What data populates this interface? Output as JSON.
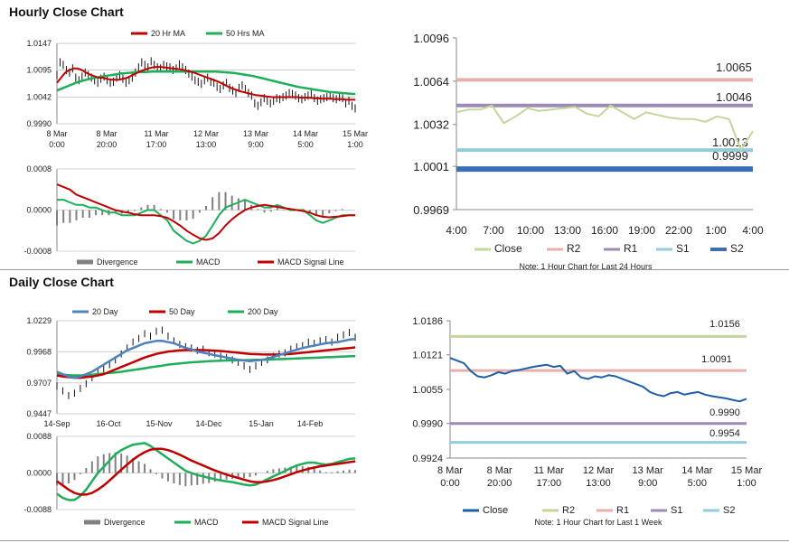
{
  "sections": {
    "hourly_title": "Hourly Close Chart",
    "daily_title": "Daily Close Chart"
  },
  "colors": {
    "ma20": "#c00000",
    "ma50": "#1fae5a",
    "ma200": "#1fae5a",
    "ma20day": "#4f81bd",
    "close_green": "#c3d69b",
    "close_blue": "#1f5fa6",
    "r2": "#e8b0ac",
    "r1": "#9e8bb5",
    "s1": "#92cddc",
    "s2": "#3c6eb4",
    "r2_daily": "#c3d69b",
    "r1_daily": "#e8b0ac",
    "s1_daily": "#9e8bb5",
    "s2_daily": "#92cddc",
    "macd": "#1fae5a",
    "signal": "#c00000",
    "divergence": "#808080"
  },
  "chart_data": [
    {
      "id": "hourly-price",
      "type": "line",
      "legend": [
        "20 Hr MA",
        "50 Hrs MA"
      ],
      "yticks": [
        "1.0147",
        "1.0095",
        "1.0042",
        "0.9990"
      ],
      "ylim": [
        0.999,
        1.0147
      ],
      "xticks": [
        [
          "8 Mar",
          "0:00"
        ],
        [
          "8 Mar",
          "20:00"
        ],
        [
          "11 Mar",
          "17:00"
        ],
        [
          "12 Mar",
          "13:00"
        ],
        [
          "13 Mar",
          "9:00"
        ],
        [
          "14 Mar",
          "5:00"
        ],
        [
          "15 Mar",
          "1:00"
        ]
      ],
      "n": 96,
      "close": [
        1.0085,
        1.011,
        1.0105,
        1.0095,
        1.009,
        1.0098,
        1.008,
        1.0075,
        1.0082,
        1.009,
        1.0085,
        1.008,
        1.0075,
        1.007,
        1.0078,
        1.0082,
        1.0075,
        1.007,
        1.0072,
        1.008,
        1.0085,
        1.0078,
        1.007,
        1.0075,
        1.008,
        1.009,
        1.01,
        1.011,
        1.0105,
        1.01,
        1.0112,
        1.0105,
        1.01,
        1.0098,
        1.0105,
        1.0102,
        1.01,
        1.0095,
        1.0098,
        1.0106,
        1.01,
        1.0095,
        1.0088,
        1.0082,
        1.0075,
        1.0072,
        1.0068,
        1.0075,
        1.008,
        1.0072,
        1.007,
        1.0062,
        1.0058,
        1.0065,
        1.007,
        1.006,
        1.0055,
        1.005,
        1.006,
        1.0065,
        1.0058,
        1.005,
        1.0045,
        1.003,
        1.0025,
        1.0032,
        1.004,
        1.0035,
        1.003,
        1.0035,
        1.004,
        1.0038,
        1.0042,
        1.0045,
        1.005,
        1.0048,
        1.0045,
        1.004,
        1.0038,
        1.0042,
        1.0045,
        1.0048,
        1.004,
        1.0035,
        1.0038,
        1.004,
        1.0042,
        1.0045,
        1.004,
        1.0038,
        1.0042,
        1.004,
        1.003,
        1.0035,
        1.0025,
        1.002
      ],
      "ma20": [
        1.007,
        1.008,
        1.009,
        1.0095,
        1.0098,
        1.0098,
        1.0095,
        1.009,
        1.0086,
        1.0083,
        1.008,
        1.008,
        1.0078,
        1.0076,
        1.0076,
        1.0076,
        1.0078,
        1.008,
        1.0084,
        1.0088,
        1.0092,
        1.0095,
        1.0098,
        1.01,
        1.0101,
        1.0101,
        1.01,
        1.0099,
        1.0098,
        1.0097,
        1.0096,
        1.0094,
        1.0092,
        1.009,
        1.0087,
        1.0084,
        1.0081,
        1.0078,
        1.0075,
        1.0072,
        1.0068,
        1.0064,
        1.006,
        1.0057,
        1.0054,
        1.0052,
        1.005,
        1.0048,
        1.0046,
        1.0045,
        1.0044,
        1.0043,
        1.0042,
        1.0042,
        1.0042,
        1.0042,
        1.0042,
        1.0042,
        1.0042,
        1.0041,
        1.0041,
        1.0041,
        1.004,
        1.004,
        1.0039,
        1.0039,
        1.0039,
        1.0038,
        1.0038,
        1.0038,
        1.0037,
        1.0037,
        1.0037
      ],
      "ma50": [
        1.0055,
        1.006,
        1.0065,
        1.007,
        1.0074,
        1.0077,
        1.008,
        1.0082,
        1.0084,
        1.0086,
        1.0088,
        1.0089,
        1.009,
        1.0091,
        1.0091,
        1.0092,
        1.0092,
        1.0092,
        1.0092,
        1.0092,
        1.0092,
        1.0092,
        1.0092,
        1.0092,
        1.0092,
        1.0092,
        1.0091,
        1.009,
        1.0089,
        1.0087,
        1.0085,
        1.0083,
        1.008,
        1.0077,
        1.0074,
        1.0071,
        1.0068,
        1.0065,
        1.0062,
        1.006,
        1.0058,
        1.0056,
        1.0054,
        1.0052,
        1.0051,
        1.005,
        1.0049,
        1.0048
      ]
    },
    {
      "id": "hourly-macd",
      "type": "line",
      "legend": [
        "Divergence",
        "MACD",
        "MACD Signal Line"
      ],
      "yticks": [
        "0.0008",
        "0.0000",
        "-0.0008"
      ],
      "ylim": [
        -0.0008,
        0.0008
      ],
      "macd": [
        0.0002,
        0.0002,
        0.00015,
        0.0001,
        0.0001,
        5e-05,
        5e-05,
        0,
        -5e-05,
        -5e-05,
        -0.0001,
        -0.0001,
        -0.0001,
        -5e-05,
        0,
        0,
        -0.0001,
        -0.0002,
        -0.0004,
        -0.0005,
        -0.0006,
        -0.00065,
        -0.0006,
        -0.0005,
        -0.0003,
        -0.0001,
        5e-05,
        0.0001,
        0.00015,
        0.0002,
        0.00015,
        0.0001,
        5e-05,
        5e-05,
        0.0001,
        5e-05,
        0,
        0,
        0,
        -0.0001,
        -0.0002,
        -0.00025,
        -0.0002,
        -0.00015,
        -0.0001,
        -0.0001,
        -0.0001
      ],
      "signal": [
        0.0005,
        0.00045,
        0.0004,
        0.0003,
        0.00025,
        0.0002,
        0.00015,
        0.0001,
        5e-05,
        0,
        -3e-05,
        -5e-05,
        -8e-05,
        -0.0001,
        -0.0001,
        -0.0001,
        -0.00012,
        -0.00015,
        -0.00022,
        -0.0003,
        -0.0004,
        -0.00048,
        -0.00055,
        -0.00058,
        -0.00055,
        -0.00045,
        -0.0003,
        -0.00018,
        -8e-05,
        0,
        5e-05,
        8e-05,
        0.0001,
        8e-05,
        6e-05,
        4e-05,
        2e-05,
        0,
        -2e-05,
        -5e-05,
        -0.0001,
        -0.00013,
        -0.00014,
        -0.00013,
        -0.00012,
        -0.0001,
        -0.0001
      ]
    },
    {
      "id": "hourly-levels",
      "type": "line",
      "yticks": [
        "1.0096",
        "1.0064",
        "1.0032",
        "1.0001",
        "0.9969"
      ],
      "ylim": [
        0.9969,
        1.0096
      ],
      "xticks": [
        "4:00",
        "7:00",
        "10:00",
        "13:00",
        "16:00",
        "19:00",
        "22:00",
        "1:00",
        "4:00"
      ],
      "close": [
        1.0041,
        1.0043,
        1.0043,
        1.0046,
        1.0033,
        1.0038,
        1.0044,
        1.0042,
        1.0043,
        1.0044,
        1.0045,
        1.004,
        1.0038,
        1.0046,
        1.0041,
        1.0036,
        1.0041,
        1.0039,
        1.0037,
        1.0036,
        1.0036,
        1.0034,
        1.0038,
        1.0036,
        1.0013,
        1.0027
      ],
      "levels": [
        {
          "name": "R2",
          "value": 1.0065,
          "label": "1.0065"
        },
        {
          "name": "R1",
          "value": 1.0046,
          "label": "1.0046"
        },
        {
          "name": "S1",
          "value": 1.0013,
          "label": "1.0013"
        },
        {
          "name": "S2",
          "value": 0.9999,
          "label": "0.9999"
        }
      ],
      "legend": [
        "Close",
        "R2",
        "R1",
        "S1",
        "S2"
      ],
      "note": "Note: 1 Hour Chart for Last 24 Hours"
    },
    {
      "id": "daily-price",
      "type": "line",
      "legend": [
        "20 Day",
        "50 Day",
        "200 Day"
      ],
      "yticks": [
        "1.0229",
        "0.9968",
        "0.9707",
        "0.9447"
      ],
      "ylim": [
        0.9447,
        1.0229
      ],
      "xticks": [
        "14-Sep",
        "16-Oct",
        "15-Nov",
        "14-Dec",
        "15-Jan",
        "14-Feb"
      ],
      "close": [
        0.968,
        0.964,
        0.96,
        0.962,
        0.966,
        0.97,
        0.975,
        0.98,
        0.982,
        0.986,
        0.99,
        0.995,
        1.0,
        1.005,
        1.008,
        1.012,
        1.01,
        1.014,
        1.015,
        1.01,
        1.006,
        1.003,
        1.001,
        1.0,
        0.998,
        0.999,
        0.996,
        0.995,
        0.993,
        0.992,
        0.99,
        0.988,
        0.985,
        0.982,
        0.985,
        0.988,
        0.99,
        0.993,
        0.995,
        0.996,
        0.999,
        1.001,
        1.002,
        1.005,
        1.004,
        1.006,
        1.007,
        1.005,
        1.009,
        1.011,
        1.013,
        1.009
      ],
      "ma20": [
        0.98,
        0.978,
        0.976,
        0.975,
        0.976,
        0.978,
        0.98,
        0.983,
        0.986,
        0.989,
        0.992,
        0.995,
        0.998,
        1.0,
        1.002,
        1.004,
        1.005,
        1.006,
        1.006,
        1.005,
        1.004,
        1.002,
        1.0,
        0.999,
        0.997,
        0.996,
        0.995,
        0.994,
        0.993,
        0.992,
        0.991,
        0.99,
        0.9895,
        0.989,
        0.9895,
        0.99,
        0.991,
        0.9925,
        0.994,
        0.9955,
        0.997,
        0.9985,
        1.0,
        1.001,
        1.002,
        1.003,
        1.004,
        1.0045,
        1.005,
        1.006,
        1.007,
        1.0075
      ],
      "ma50": [
        0.977,
        0.976,
        0.9755,
        0.975,
        0.975,
        0.9755,
        0.976,
        0.977,
        0.978,
        0.98,
        0.982,
        0.984,
        0.986,
        0.988,
        0.99,
        0.992,
        0.9935,
        0.995,
        0.996,
        0.997,
        0.9975,
        0.998,
        0.9982,
        0.9983,
        0.9983,
        0.9982,
        0.998,
        0.9978,
        0.9975,
        0.997,
        0.9965,
        0.996,
        0.9955,
        0.995,
        0.9948,
        0.9946,
        0.9945,
        0.9945,
        0.9946,
        0.9948,
        0.995,
        0.9955,
        0.996,
        0.9965,
        0.997,
        0.9975,
        0.998,
        0.9985,
        0.999,
        0.9995,
        1.0,
        1.0005
      ],
      "ma200": [
        0.978,
        0.9775,
        0.9772,
        0.977,
        0.977,
        0.9772,
        0.9775,
        0.978,
        0.9785,
        0.979,
        0.9795,
        0.98,
        0.9808,
        0.9815,
        0.9822,
        0.983,
        0.9838,
        0.9845,
        0.9852,
        0.986,
        0.9865,
        0.987,
        0.9875,
        0.988,
        0.9883,
        0.9886,
        0.9889,
        0.9891,
        0.9893,
        0.9895,
        0.9896,
        0.9897,
        0.9898,
        0.9899,
        0.99,
        0.9901,
        0.9902,
        0.9904,
        0.9906,
        0.9908,
        0.991,
        0.9912,
        0.9914,
        0.9916,
        0.9918,
        0.992,
        0.9922,
        0.9924,
        0.9926,
        0.9928,
        0.993,
        0.9932
      ]
    },
    {
      "id": "daily-macd",
      "type": "line",
      "legend": [
        "Divergence",
        "MACD",
        "MACD Signal Line"
      ],
      "yticks": [
        "0.0088",
        "0.0000",
        "-0.0088"
      ],
      "ylim": [
        -0.0088,
        0.0088
      ],
      "macd": [
        -0.005,
        -0.006,
        -0.0065,
        -0.0065,
        -0.0055,
        -0.004,
        -0.002,
        0.0,
        0.0015,
        0.003,
        0.0045,
        0.0055,
        0.0062,
        0.0068,
        0.007,
        0.0072,
        0.0065,
        0.0055,
        0.0045,
        0.0035,
        0.0025,
        0.0015,
        0.0005,
        0.0,
        -0.0005,
        -0.0008,
        -0.0012,
        -0.0015,
        -0.0018,
        -0.002,
        -0.0022,
        -0.0025,
        -0.0028,
        -0.003,
        -0.0028,
        -0.0022,
        -0.0015,
        -0.0008,
        -0.0002,
        0.0005,
        0.0012,
        0.0018,
        0.0022,
        0.0025,
        0.0025,
        0.0022,
        0.002,
        0.0022,
        0.0026,
        0.003,
        0.0034,
        0.0035
      ],
      "signal": [
        -0.002,
        -0.003,
        -0.004,
        -0.0048,
        -0.0052,
        -0.0052,
        -0.0048,
        -0.004,
        -0.003,
        -0.0018,
        -0.0005,
        0.0008,
        0.002,
        0.0032,
        0.0042,
        0.005,
        0.0056,
        0.0058,
        0.0058,
        0.0055,
        0.005,
        0.0044,
        0.0037,
        0.003,
        0.0024,
        0.0018,
        0.0012,
        0.0006,
        0.0001,
        -0.0004,
        -0.0008,
        -0.0012,
        -0.0016,
        -0.002,
        -0.0022,
        -0.0022,
        -0.002,
        -0.0017,
        -0.0013,
        -0.0008,
        -0.0003,
        0.0002,
        0.0006,
        0.001,
        0.0013,
        0.0016,
        0.0018,
        0.002,
        0.0022,
        0.0024,
        0.0026,
        0.0028
      ]
    },
    {
      "id": "daily-levels",
      "type": "line",
      "yticks": [
        "1.0186",
        "1.0121",
        "1.0055",
        "0.9990",
        "0.9924"
      ],
      "ylim": [
        0.9924,
        1.0186
      ],
      "xticks": [
        [
          "8 Mar",
          "0:00"
        ],
        [
          "8 Mar",
          "20:00"
        ],
        [
          "11 Mar",
          "17:00"
        ],
        [
          "12 Mar",
          "13:00"
        ],
        [
          "13 Mar",
          "9:00"
        ],
        [
          "14 Mar",
          "5:00"
        ],
        [
          "15 Mar",
          "1:00"
        ]
      ],
      "close": [
        1.0115,
        1.011,
        1.0105,
        1.009,
        1.008,
        1.0078,
        1.0082,
        1.0088,
        1.0085,
        1.009,
        1.0092,
        1.0095,
        1.0098,
        1.01,
        1.0102,
        1.0098,
        1.01,
        1.0085,
        1.009,
        1.0078,
        1.0075,
        1.008,
        1.0078,
        1.0082,
        1.008,
        1.0075,
        1.007,
        1.0065,
        1.006,
        1.005,
        1.0045,
        1.0042,
        1.0048,
        1.005,
        1.0045,
        1.0048,
        1.005,
        1.0045,
        1.0042,
        1.004,
        1.0038,
        1.0035,
        1.0032,
        1.0037
      ],
      "levels": [
        {
          "name": "R2",
          "value": 1.0156,
          "label": "1.0156"
        },
        {
          "name": "R1",
          "value": 1.0091,
          "label": "1.0091"
        },
        {
          "name": "S1",
          "value": 0.999,
          "label": "0.9990"
        },
        {
          "name": "S2",
          "value": 0.9954,
          "label": "0.9954"
        }
      ],
      "legend": [
        "Close",
        "R2",
        "R1",
        "S1",
        "S2"
      ],
      "note": "Note: 1 Hour Chart for Last 1 Week"
    }
  ]
}
